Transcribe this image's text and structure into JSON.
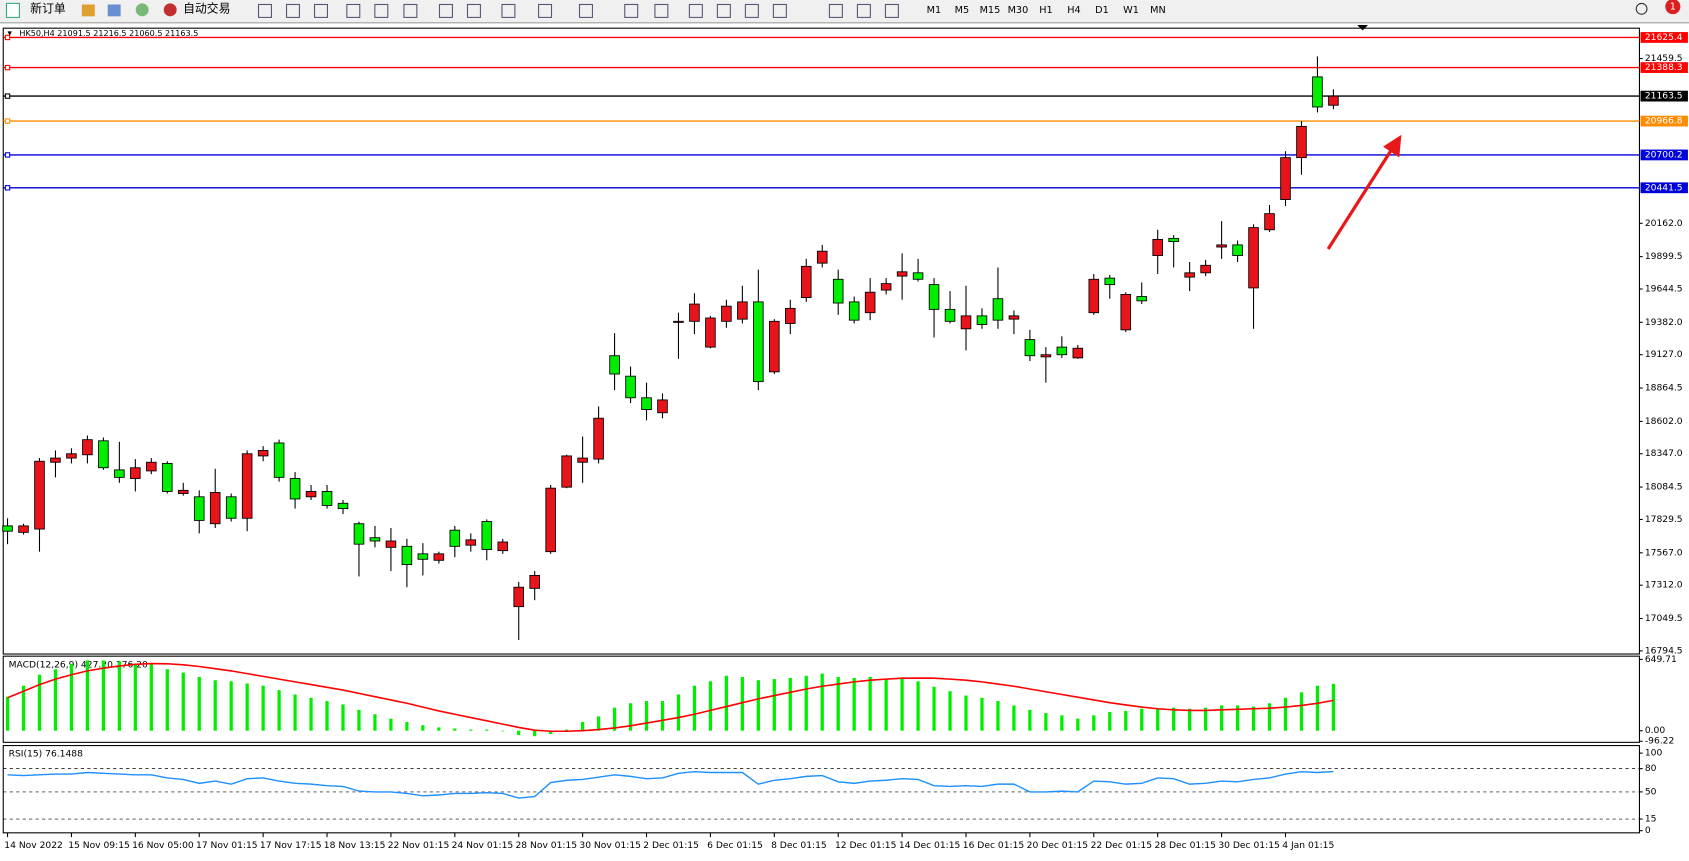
{
  "toolbar": {
    "new_order": "新订单",
    "auto_trading": "自动交易",
    "timeframes": [
      "M1",
      "M5",
      "M15",
      "M30",
      "H1",
      "H4",
      "D1",
      "W1",
      "MN"
    ],
    "notifications": "1"
  },
  "chart_data": [
    {
      "type": "candlestick",
      "title": "HK50,H4  21091.5 21216.5 21060.5 21163.5",
      "categories": [
        "14 Nov 2022",
        null,
        null,
        null,
        "15 Nov 09:15",
        null,
        null,
        null,
        "16 Nov 05:00",
        null,
        null,
        null,
        "17 Nov 01:15",
        null,
        null,
        null,
        "17 Nov 17:15",
        null,
        null,
        null,
        "18 Nov 13:15",
        null,
        null,
        null,
        "22 Nov 01:15",
        null,
        null,
        null,
        "24 Nov 01:15",
        null,
        null,
        null,
        "28 Nov 01:15",
        null,
        null,
        null,
        "30 Nov 01:15",
        null,
        null,
        null,
        "2 Dec 01:15",
        null,
        null,
        null,
        "6 Dec 01:15",
        null,
        null,
        null,
        "8 Dec 01:15",
        null,
        null,
        null,
        "12 Dec 01:15",
        null,
        null,
        null,
        "14 Dec 01:15",
        null,
        null,
        null,
        "16 Dec 01:15",
        null,
        null,
        null,
        "20 Dec 01:15",
        null,
        null,
        null,
        "22 Dec 01:15",
        null,
        null,
        null,
        "28 Dec 01:15",
        null,
        null,
        null,
        "30 Dec 01:15",
        null,
        null,
        null,
        "4 Jan 01:15",
        null,
        null,
        null
      ],
      "open": [
        17779,
        17728,
        17754,
        18280,
        18313,
        18339,
        18449,
        18220,
        18152,
        18212,
        18271,
        18034,
        18008,
        17796,
        18008,
        17839,
        18330,
        18432,
        18152,
        18008,
        18050,
        17957,
        17796,
        17686,
        17610,
        17618,
        17559,
        17508,
        17745,
        17627,
        17813,
        17584,
        17143,
        17287,
        17576,
        18084,
        18280,
        18305,
        19119,
        18958,
        18788,
        18670,
        19382,
        19390,
        19187,
        19390,
        19407,
        19543,
        18992,
        19373,
        19577,
        19848,
        19721,
        19543,
        19458,
        19636,
        19746,
        19772,
        19679,
        19484,
        19331,
        19433,
        19568,
        19407,
        19246,
        19110,
        19187,
        19102,
        19458,
        19730,
        19323,
        19585,
        19908,
        20043,
        19738,
        19772,
        19975,
        19992,
        19653,
        20111,
        20349,
        20679,
        21315,
        21091.5
      ],
      "high": [
        17839,
        17796,
        18313,
        18373,
        18390,
        18491,
        18475,
        18441,
        18305,
        18313,
        18288,
        18118,
        18059,
        18229,
        18034,
        18373,
        18407,
        18458,
        18203,
        18101,
        18101,
        17983,
        17813,
        17779,
        17762,
        17677,
        17643,
        17576,
        17779,
        17720,
        17830,
        17677,
        17338,
        17423,
        18101,
        18339,
        18483,
        18720,
        19297,
        19034,
        18907,
        18822,
        19458,
        19611,
        19433,
        19560,
        19670,
        19797,
        19407,
        19560,
        19882,
        19992,
        19797,
        19585,
        19730,
        19730,
        19925,
        19882,
        19730,
        19628,
        19670,
        19492,
        19814,
        19475,
        19323,
        19187,
        19272,
        19204,
        19763,
        19755,
        19619,
        19696,
        20111,
        20069,
        19857,
        19874,
        20179,
        20026,
        20154,
        20306,
        20730,
        20968,
        21476,
        21216.5
      ],
      "low": [
        17635,
        17711,
        17576,
        18161,
        18271,
        18271,
        18220,
        18118,
        18050,
        18186,
        18034,
        18017,
        17720,
        17762,
        17813,
        17737,
        18288,
        18127,
        17915,
        17983,
        17915,
        17872,
        17381,
        17610,
        17423,
        17296,
        17389,
        17482,
        17533,
        17576,
        17508,
        17559,
        16880,
        17194,
        17559,
        18076,
        18118,
        18271,
        18848,
        18746,
        18610,
        18627,
        19094,
        19289,
        19178,
        19339,
        19373,
        18848,
        18975,
        19289,
        19543,
        19814,
        19441,
        19373,
        19399,
        19602,
        19560,
        19704,
        19263,
        19373,
        19161,
        19331,
        19331,
        19289,
        19077,
        18907,
        19102,
        19094,
        19441,
        19568,
        19306,
        19526,
        19763,
        19814,
        19628,
        19746,
        19882,
        19857,
        19331,
        20094,
        20298,
        20544,
        21035,
        21060.5
      ],
      "close": [
        17737,
        17779,
        18288,
        18313,
        18347,
        18458,
        18237,
        18161,
        18237,
        18280,
        18050,
        18059,
        17822,
        18042,
        17839,
        18347,
        18373,
        18161,
        17991,
        18050,
        17940,
        17915,
        17635,
        17660,
        17660,
        17474,
        17516,
        17559,
        17618,
        17669,
        17593,
        17652,
        17296,
        17389,
        18076,
        18330,
        18313,
        18627,
        18975,
        18788,
        18695,
        18771,
        19390,
        19526,
        19416,
        19509,
        19543,
        18915,
        19390,
        19492,
        19823,
        19942,
        19534,
        19399,
        19619,
        19687,
        19780,
        19721,
        19484,
        19390,
        19433,
        19365,
        19399,
        19433,
        19119,
        19127,
        19127,
        19178,
        19721,
        19679,
        19602,
        19551,
        20035,
        20018,
        19772,
        19831,
        19992,
        19908,
        20128,
        20238,
        20679,
        20925,
        21078,
        21163.5
      ],
      "up_color": "#e8141c",
      "down_color": "#00ee00",
      "ylim": [
        16770,
        21690
      ],
      "yticks": [
        21459.5,
        {
          "value": 20162,
          "label": "20162.0"
        },
        19899.5,
        19644.5,
        {
          "value": 19382,
          "label": "19382.0"
        },
        {
          "value": 19127,
          "label": "19127.0"
        },
        18864.5,
        {
          "value": 18602,
          "label": "18602.0"
        },
        {
          "value": 18347,
          "label": "18347.0"
        },
        18084.5,
        17829.5,
        {
          "value": 17567,
          "label": "17567.0"
        },
        {
          "value": 17312,
          "label": "17312.0"
        },
        17049.5,
        16794.5
      ],
      "levels": [
        {
          "value": 21625.4,
          "color": "#ff0000"
        },
        {
          "value": 21388.3,
          "color": "#ff0000"
        },
        {
          "value": 21163.5,
          "color": "#000000"
        },
        {
          "value": 20966.8,
          "color": "#ff8c00"
        },
        {
          "value": 20700.2,
          "color": "#0000dd"
        },
        {
          "value": 20441.5,
          "color": "#0000dd"
        }
      ]
    },
    {
      "type": "macd",
      "title": "MACD(12,26,9) 427.20 276.20",
      "histogram": [
        310,
        410,
        510,
        560,
        610,
        640,
        640,
        630,
        610,
        610,
        560,
        530,
        490,
        460,
        450,
        430,
        410,
        370,
        330,
        300,
        270,
        240,
        190,
        150,
        110,
        80,
        50,
        30,
        20,
        10,
        10,
        0,
        -40,
        -50,
        -30,
        10,
        80,
        130,
        210,
        250,
        270,
        270,
        330,
        410,
        450,
        500,
        490,
        460,
        470,
        480,
        500,
        520,
        490,
        480,
        490,
        470,
        480,
        450,
        400,
        360,
        320,
        300,
        270,
        230,
        190,
        160,
        140,
        110,
        140,
        170,
        180,
        200,
        200,
        210,
        200,
        210,
        230,
        230,
        220,
        250,
        300,
        350,
        410,
        427.2
      ],
      "signal": [
        300,
        360,
        420,
        470,
        510,
        545,
        570,
        590,
        605,
        612,
        610,
        600,
        585,
        565,
        545,
        520,
        495,
        470,
        445,
        420,
        395,
        370,
        340,
        310,
        280,
        250,
        215,
        180,
        150,
        120,
        90,
        60,
        30,
        5,
        -5,
        -5,
        0,
        10,
        25,
        45,
        70,
        95,
        120,
        150,
        185,
        220,
        255,
        290,
        320,
        350,
        380,
        405,
        425,
        445,
        460,
        470,
        478,
        480,
        478,
        470,
        460,
        445,
        425,
        405,
        380,
        355,
        330,
        305,
        280,
        255,
        235,
        215,
        200,
        190,
        185,
        185,
        190,
        195,
        200,
        205,
        215,
        230,
        250,
        276.2
      ],
      "hist_color": "#00ee00",
      "signal_color": "#ff0000",
      "ylim": [
        -96.22,
        649.71
      ],
      "yticks": [
        649.71,
        {
          "value": 0,
          "label": "0.00"
        },
        -96.22
      ]
    },
    {
      "type": "line",
      "title": "RSI(15) 76.1488",
      "values": [
        72,
        71,
        72,
        73,
        73,
        75,
        74,
        73,
        72,
        72,
        68,
        66,
        61,
        64,
        60,
        67,
        68,
        64,
        61,
        60,
        58,
        57,
        51,
        50,
        50,
        48,
        45,
        46,
        48,
        48,
        49,
        48,
        42,
        44,
        62,
        65,
        66,
        69,
        72,
        70,
        67,
        68,
        74,
        76,
        75,
        75,
        75,
        60,
        65,
        67,
        70,
        71,
        63,
        61,
        64,
        65,
        67,
        66,
        58,
        57,
        58,
        57,
        60,
        60,
        50,
        50,
        51,
        50,
        64,
        63,
        60,
        61,
        68,
        67,
        60,
        61,
        64,
        63,
        66,
        68,
        73,
        76,
        75,
        76.1488
      ],
      "color": "#1e90ff",
      "grid": "dashed",
      "ylim": [
        0,
        100
      ],
      "yticks": [
        100,
        80,
        50,
        15,
        0
      ]
    }
  ]
}
